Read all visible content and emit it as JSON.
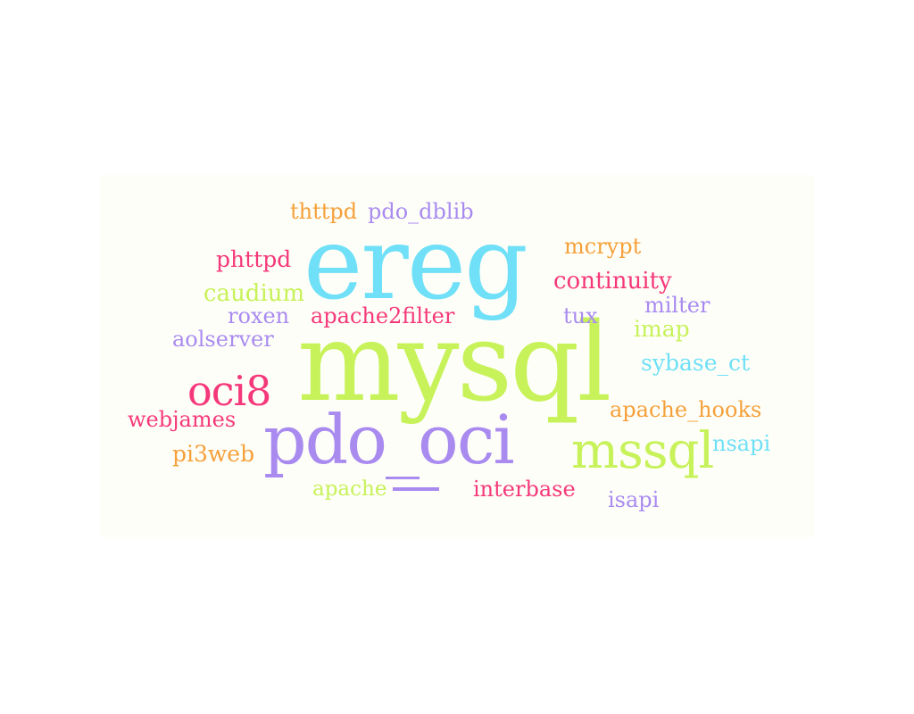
{
  "colors": {
    "pink": "#f5387a",
    "cyan": "#6fe0f7",
    "lime": "#c7f25a",
    "purple": "#a98bf0",
    "orange": "#f5a03a",
    "canvas_bg": "#fefef8"
  },
  "words": {
    "ereg": "ereg",
    "mysql": "mysql",
    "pdo_oci": "pdo_oci",
    "mssql": "mssql",
    "oci8": "oci8",
    "thttpd": "thttpd",
    "pdo_dblib": "pdo_dblib",
    "mcrypt": "mcrypt",
    "phttpd": "phttpd",
    "continuity": "continuity",
    "caudium": "caudium",
    "milter": "milter",
    "roxen": "roxen",
    "apache2filter": "apache2filter",
    "tux": "tux",
    "imap": "imap",
    "aolserver": "aolserver",
    "sybase_ct": "sybase_ct",
    "apache_hooks": "apache_hooks",
    "webjames": "webjames",
    "nsapi": "nsapi",
    "pi3web": "pi3web",
    "apache": "apache",
    "interbase": "interbase",
    "isapi": "isapi"
  }
}
